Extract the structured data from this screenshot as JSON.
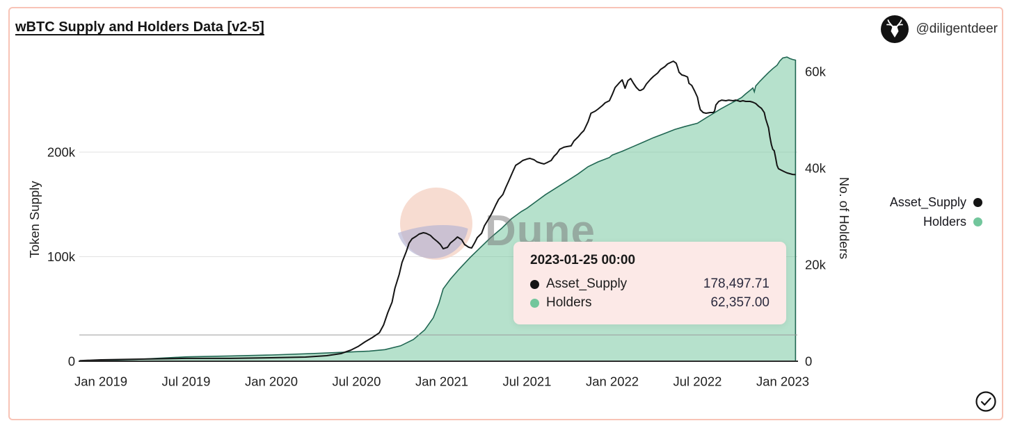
{
  "header": {
    "title": "wBTC Supply and Holders Data [v2-5]",
    "author_handle": "@diligentdeer"
  },
  "legend": {
    "items": [
      {
        "label": "Asset_Supply",
        "color": "#141414"
      },
      {
        "label": "Holders",
        "color": "#72c69c"
      }
    ]
  },
  "tooltip": {
    "date": "2023-01-25 00:00",
    "rows": [
      {
        "label": "Asset_Supply",
        "color": "#141414",
        "value": "178,497.71"
      },
      {
        "label": "Holders",
        "color": "#72c69c",
        "value": "62,357.00"
      }
    ]
  },
  "watermark": {
    "text": "Dune",
    "circle_top_color": "#f6d7cb",
    "circle_bottom_color": "#b0b0d2",
    "text_color": "#777777"
  },
  "colors": {
    "card_border": "#f8c3b6",
    "gridline": "#e2e2e2",
    "axis_line": "#2b2b2b",
    "crosshair": "#9b9b9b",
    "tick_text": "#1f1f1f",
    "area_fill": "rgba(110,196,154,0.5)",
    "area_stroke": "#206652",
    "line_stroke": "#141414"
  },
  "chart_data": {
    "type": "line",
    "title": "wBTC Supply and Holders Data [v2-5]",
    "note": "dual-axis time chart: black line = Token Supply (left axis, thousands of wBTC), green area = No. of Holders (right axis, thousands). x = months since Jan 2019.",
    "x_axis": {
      "ticks": [
        {
          "month": 0,
          "label": "Jan 2019"
        },
        {
          "month": 6,
          "label": "Jul 2019"
        },
        {
          "month": 12,
          "label": "Jan 2020"
        },
        {
          "month": 18,
          "label": "Jul 2020"
        },
        {
          "month": 24,
          "label": "Jan 2021"
        },
        {
          "month": 30,
          "label": "Jul 2021"
        },
        {
          "month": 36,
          "label": "Jan 2022"
        },
        {
          "month": 42,
          "label": "Jul 2022"
        },
        {
          "month": 48,
          "label": "Jan 2023"
        }
      ],
      "range_months": [
        -1.5,
        48.9
      ]
    },
    "y_left": {
      "title": "Token Supply",
      "ticks": [
        {
          "label": "0",
          "value": 0
        },
        {
          "label": "100k",
          "value": 100
        },
        {
          "label": "200k",
          "value": 200
        }
      ],
      "ylim": [
        0,
        295
      ],
      "unit": "k wBTC"
    },
    "y_right": {
      "title": "No. of Holders",
      "ticks": [
        {
          "label": "0",
          "value": 0
        },
        {
          "label": "20k",
          "value": 20
        },
        {
          "label": "40k",
          "value": 40
        },
        {
          "label": "60k",
          "value": 60
        }
      ],
      "ylim": [
        0,
        64
      ],
      "unit": "k holders"
    },
    "hover_crosshair_y_left": 25.2,
    "legend_position": "right",
    "grid": "horizontal-left-axis-only",
    "series": [
      {
        "name": "Asset_Supply",
        "axis": "left",
        "style": "line",
        "color": "#141414",
        "points": [
          [
            -1.5,
            0.5
          ],
          [
            0,
            1.3
          ],
          [
            2.7,
            2
          ],
          [
            6,
            2.7
          ],
          [
            9.1,
            2.7
          ],
          [
            12,
            3.3
          ],
          [
            14.4,
            4
          ],
          [
            15.9,
            5.3
          ],
          [
            16.9,
            7.3
          ],
          [
            17.6,
            10.6
          ],
          [
            18.1,
            14
          ],
          [
            18.6,
            18.6
          ],
          [
            19.1,
            22.6
          ],
          [
            19.6,
            27.2
          ],
          [
            19.9,
            34.6
          ],
          [
            20.2,
            46.5
          ],
          [
            20.5,
            56.5
          ],
          [
            20.7,
            69.8
          ],
          [
            21,
            83.1
          ],
          [
            21.2,
            94.4
          ],
          [
            21.5,
            105
          ],
          [
            21.7,
            113
          ],
          [
            21.9,
            117
          ],
          [
            22.2,
            119.6
          ],
          [
            22.4,
            121.6
          ],
          [
            22.7,
            122.9
          ],
          [
            22.9,
            122.3
          ],
          [
            23.2,
            120.3
          ],
          [
            23.4,
            117.6
          ],
          [
            23.7,
            114.3
          ],
          [
            23.9,
            111.6
          ],
          [
            24.1,
            107.6
          ],
          [
            24.4,
            109
          ],
          [
            24.6,
            113
          ],
          [
            24.9,
            116.3
          ],
          [
            25.1,
            118.9
          ],
          [
            25.4,
            116.3
          ],
          [
            25.6,
            111.6
          ],
          [
            25.9,
            109
          ],
          [
            26.1,
            108.3
          ],
          [
            26.3,
            113
          ],
          [
            26.5,
            118.3
          ],
          [
            26.8,
            122.3
          ],
          [
            27,
            129.6
          ],
          [
            27.3,
            136.2
          ],
          [
            27.5,
            140.9
          ],
          [
            27.8,
            149.5
          ],
          [
            28,
            154.8
          ],
          [
            28.3,
            159.5
          ],
          [
            28.5,
            166.1
          ],
          [
            28.7,
            172.1
          ],
          [
            29,
            181.4
          ],
          [
            29.2,
            187.4
          ],
          [
            29.5,
            190
          ],
          [
            29.7,
            192
          ],
          [
            30,
            193.4
          ],
          [
            30.2,
            194
          ],
          [
            30.5,
            192.7
          ],
          [
            30.7,
            190.7
          ],
          [
            31,
            189.4
          ],
          [
            31.2,
            188.7
          ],
          [
            31.4,
            190
          ],
          [
            31.7,
            192
          ],
          [
            31.9,
            196
          ],
          [
            32.1,
            198.7
          ],
          [
            32.3,
            202.7
          ],
          [
            32.6,
            204.7
          ],
          [
            32.8,
            205.3
          ],
          [
            33.1,
            206
          ],
          [
            33.3,
            210.6
          ],
          [
            33.6,
            214.6
          ],
          [
            33.8,
            217.9
          ],
          [
            34,
            220.6
          ],
          [
            34.3,
            229.2
          ],
          [
            34.5,
            237.2
          ],
          [
            34.8,
            239.2
          ],
          [
            35,
            241.2
          ],
          [
            35.3,
            244.5
          ],
          [
            35.5,
            247.2
          ],
          [
            35.8,
            249.2
          ],
          [
            36,
            255.1
          ],
          [
            36.2,
            261.8
          ],
          [
            36.5,
            266.4
          ],
          [
            36.7,
            269.1
          ],
          [
            36.9,
            261.1
          ],
          [
            37.1,
            268.4
          ],
          [
            37.3,
            270.4
          ],
          [
            37.5,
            265.8
          ],
          [
            37.7,
            261.8
          ],
          [
            37.9,
            259.1
          ],
          [
            38,
            259.1
          ],
          [
            38.2,
            260.5
          ],
          [
            38.4,
            265.1
          ],
          [
            38.7,
            269.8
          ],
          [
            38.9,
            272.4
          ],
          [
            39.2,
            275.7
          ],
          [
            39.4,
            279.1
          ],
          [
            39.7,
            281.7
          ],
          [
            39.9,
            284.4
          ],
          [
            40.2,
            286.4
          ],
          [
            40.3,
            287
          ],
          [
            40.5,
            285
          ],
          [
            40.6,
            281.1
          ],
          [
            40.7,
            276.4
          ],
          [
            40.9,
            273.8
          ],
          [
            41.1,
            273.1
          ],
          [
            41.3,
            271.8
          ],
          [
            41.4,
            265.8
          ],
          [
            41.6,
            263.8
          ],
          [
            41.8,
            258.5
          ],
          [
            42,
            252.5
          ],
          [
            42.1,
            245.8
          ],
          [
            42.2,
            240.5
          ],
          [
            42.4,
            237.9
          ],
          [
            42.6,
            237.2
          ],
          [
            42.9,
            237.9
          ],
          [
            43.1,
            237.9
          ],
          [
            43.2,
            239.2
          ],
          [
            43.3,
            245.2
          ],
          [
            43.5,
            248.5
          ],
          [
            43.7,
            249.8
          ],
          [
            44,
            249.2
          ],
          [
            44.2,
            249.8
          ],
          [
            44.5,
            249.2
          ],
          [
            44.7,
            249.8
          ],
          [
            45,
            248.5
          ],
          [
            45.2,
            249.2
          ],
          [
            45.4,
            248.5
          ],
          [
            45.7,
            248.5
          ],
          [
            45.9,
            247.8
          ],
          [
            46.1,
            246.5
          ],
          [
            46.3,
            243.9
          ],
          [
            46.5,
            241.9
          ],
          [
            46.7,
            237.9
          ],
          [
            46.8,
            231.9
          ],
          [
            47,
            223.3
          ],
          [
            47.1,
            214.6
          ],
          [
            47.2,
            207.3
          ],
          [
            47.3,
            202.7
          ],
          [
            47.4,
            201.3
          ],
          [
            47.5,
            194.7
          ],
          [
            47.6,
            187.4
          ],
          [
            47.7,
            184.1
          ],
          [
            47.9,
            182.7
          ],
          [
            48.1,
            181.4
          ],
          [
            48.3,
            180.1
          ],
          [
            48.5,
            179.4
          ],
          [
            48.7,
            178.7
          ],
          [
            48.9,
            178.5
          ]
        ],
        "last_value_label": "178,497.71"
      },
      {
        "name": "Holders",
        "axis": "right",
        "style": "area",
        "color": "#72c69c",
        "points": [
          [
            -1.5,
            0.05
          ],
          [
            0,
            0.15
          ],
          [
            2.7,
            0.4
          ],
          [
            6,
            0.9
          ],
          [
            9.1,
            1.1
          ],
          [
            12,
            1.3
          ],
          [
            14.9,
            1.6
          ],
          [
            17.4,
            1.9
          ],
          [
            18.9,
            2.1
          ],
          [
            20,
            2.4
          ],
          [
            21.1,
            3.2
          ],
          [
            22,
            4.5
          ],
          [
            22.8,
            6.5
          ],
          [
            23.4,
            9
          ],
          [
            23.8,
            12
          ],
          [
            24.1,
            15
          ],
          [
            24.6,
            17
          ],
          [
            25.2,
            19
          ],
          [
            26,
            21.5
          ],
          [
            26.7,
            23.5
          ],
          [
            27.4,
            25.5
          ],
          [
            28.2,
            27.5
          ],
          [
            28.9,
            29.5
          ],
          [
            29.6,
            31
          ],
          [
            30,
            31.7
          ],
          [
            30.6,
            33
          ],
          [
            31.3,
            34.5
          ],
          [
            32.1,
            36
          ],
          [
            32.8,
            37.3
          ],
          [
            33.6,
            38.8
          ],
          [
            34.3,
            40.3
          ],
          [
            35,
            41.3
          ],
          [
            35.8,
            42.2
          ],
          [
            36,
            42.7
          ],
          [
            36.7,
            43.5
          ],
          [
            37.5,
            44.5
          ],
          [
            38.2,
            45.4
          ],
          [
            38.9,
            46.3
          ],
          [
            39.7,
            47.2
          ],
          [
            40.4,
            48
          ],
          [
            41.1,
            48.6
          ],
          [
            42,
            49.3
          ],
          [
            42.6,
            50.4
          ],
          [
            43.1,
            51.3
          ],
          [
            43.6,
            52.2
          ],
          [
            44.1,
            53
          ],
          [
            44.6,
            53.8
          ],
          [
            45.1,
            54.6
          ],
          [
            45.4,
            55.4
          ],
          [
            45.7,
            56.1
          ],
          [
            45.9,
            56.6
          ],
          [
            46,
            55.8
          ],
          [
            46.1,
            57
          ],
          [
            46.4,
            58
          ],
          [
            46.7,
            58.9
          ],
          [
            47,
            59.8
          ],
          [
            47.3,
            60.6
          ],
          [
            47.6,
            61.3
          ],
          [
            47.8,
            62.2
          ],
          [
            48,
            62.8
          ],
          [
            48.3,
            63
          ],
          [
            48.5,
            62.7
          ],
          [
            48.7,
            62.5
          ],
          [
            48.9,
            62.36
          ]
        ],
        "last_value_label": "62,357.00"
      }
    ]
  }
}
